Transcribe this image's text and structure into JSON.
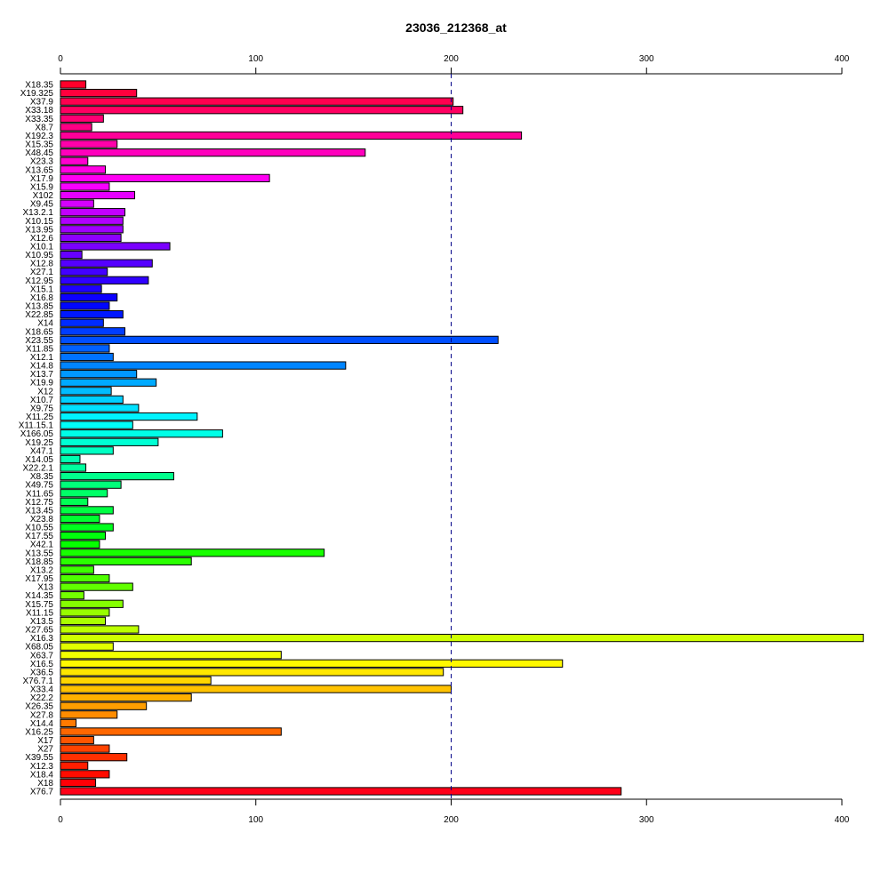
{
  "chart_data": {
    "type": "bar",
    "orientation": "horizontal",
    "title": "23036_212368_at",
    "xlabel": "",
    "ylabel": "",
    "xlim": [
      0,
      400
    ],
    "xticks": [
      0,
      100,
      200,
      300,
      400
    ],
    "reference_line": 200,
    "grid": false,
    "categories": [
      "X18.35",
      "X19.325",
      "X37.9",
      "X33.18",
      "X33.35",
      "X8.7",
      "X192.3",
      "X15.35",
      "X48.45",
      "X23.3",
      "X13.65",
      "X17.9",
      "X15.9",
      "X102",
      "X9.45",
      "X13.2.1",
      "X10.15",
      "X13.95",
      "X12.6",
      "X10.1",
      "X10.95",
      "X12.8",
      "X27.1",
      "X12.95",
      "X15.1",
      "X16.8",
      "X13.85",
      "X22.85",
      "X14",
      "X18.65",
      "X23.55",
      "X11.85",
      "X12.1",
      "X14.8",
      "X13.7",
      "X19.9",
      "X12",
      "X10.7",
      "X9.75",
      "X11.25",
      "X11.15.1",
      "X166.05",
      "X19.25",
      "X47.1",
      "X14.05",
      "X22.2.1",
      "X8.35",
      "X49.75",
      "X11.65",
      "X12.75",
      "X13.45",
      "X23.8",
      "X10.55",
      "X17.55",
      "X42.1",
      "X13.55",
      "X18.85",
      "X13.2",
      "X17.95",
      "X13",
      "X14.35",
      "X15.75",
      "X11.15",
      "X13.5",
      "X27.65",
      "X16.3",
      "X68.05",
      "X63.7",
      "X16.5",
      "X36.5",
      "X76.7.1",
      "X33.4",
      "X22.2",
      "X26.35",
      "X27.8",
      "X14.4",
      "X16.25",
      "X17",
      "X27",
      "X39.55",
      "X12.3",
      "X18.4",
      "X18",
      "X76.7"
    ],
    "values": [
      13,
      39,
      201,
      206,
      22,
      16,
      236,
      29,
      156,
      14,
      23,
      107,
      25,
      38,
      17,
      33,
      32,
      32,
      31,
      56,
      11,
      47,
      24,
      45,
      21,
      29,
      25,
      32,
      22,
      33,
      224,
      25,
      27,
      146,
      39,
      49,
      26,
      32,
      40,
      70,
      37,
      83,
      50,
      27,
      10,
      13,
      58,
      31,
      24,
      14,
      27,
      20,
      27,
      23,
      20,
      135,
      67,
      17,
      25,
      37,
      12,
      32,
      25,
      23,
      40,
      411,
      27,
      113,
      257,
      196,
      77,
      200,
      67,
      44,
      29,
      8,
      113,
      17,
      25,
      34,
      14,
      25,
      18,
      287
    ]
  }
}
